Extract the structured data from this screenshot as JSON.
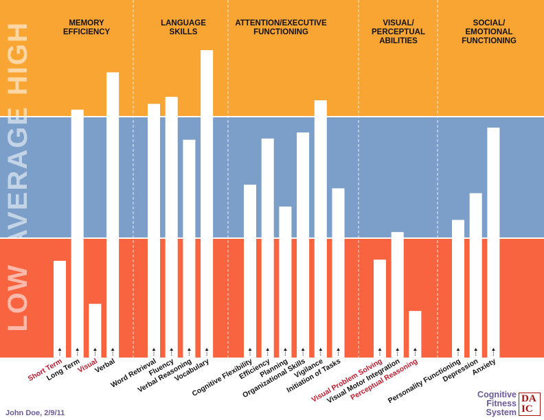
{
  "chart_data": {
    "type": "bar",
    "bands": [
      {
        "label": "HIGH",
        "color": "#f9a534",
        "range": [
          2,
          3
        ]
      },
      {
        "label": "AVERAGE",
        "color": "#7b9fc8",
        "range": [
          1,
          2
        ]
      },
      {
        "label": "LOW",
        "color": "#f86440",
        "range": [
          0,
          1
        ]
      }
    ],
    "ylim": [
      0,
      3
    ],
    "groups": [
      {
        "title": [
          "MEMORY",
          "EFFICIENCY"
        ],
        "items": [
          {
            "label": "Short Term",
            "value": 0.81,
            "highlight": true
          },
          {
            "label": "Long Term",
            "value": 2.06,
            "highlight": false
          },
          {
            "label": "Visual",
            "value": 0.45,
            "highlight": true
          },
          {
            "label": "Verbal",
            "value": 2.38,
            "highlight": false
          }
        ]
      },
      {
        "title": [
          "LANGUAGE",
          "SKILLS"
        ],
        "items": [
          {
            "label": "Word Retrieval",
            "value": 2.11,
            "highlight": false
          },
          {
            "label": "Fluency",
            "value": 2.17,
            "highlight": false
          },
          {
            "label": "Verbal Reasoning",
            "value": 1.81,
            "highlight": false
          },
          {
            "label": "Vocabulary",
            "value": 2.57,
            "highlight": false
          }
        ]
      },
      {
        "title": [
          "ATTENTION/EXECUTIVE",
          "FUNCTIONING"
        ],
        "items": [
          {
            "label": "Cognitive Flexibility",
            "value": 1.44,
            "highlight": false
          },
          {
            "label": "Efficiency",
            "value": 1.82,
            "highlight": false
          },
          {
            "label": "Planning",
            "value": 1.26,
            "highlight": false
          },
          {
            "label": "Organizational Skills",
            "value": 1.87,
            "highlight": false
          },
          {
            "label": "Vigilance",
            "value": 2.14,
            "highlight": false
          },
          {
            "label": "Initiation of Tasks",
            "value": 1.41,
            "highlight": false
          }
        ]
      },
      {
        "title": [
          "VISUAL/",
          "PERCEPTUAL",
          "ABILITIES"
        ],
        "items": [
          {
            "label": "Visual Problem Solving",
            "value": 0.82,
            "highlight": true
          },
          {
            "label": "Visual Motor Integration",
            "value": 1.05,
            "highlight": false
          },
          {
            "label": "Perceptual Reasoning",
            "value": 0.39,
            "highlight": true
          }
        ]
      },
      {
        "title": [
          "SOCIAL/",
          "EMOTIONAL",
          "FUNCTIONING"
        ],
        "items": [
          {
            "label": "Personality Functioning",
            "value": 1.15,
            "highlight": false
          },
          {
            "label": "Depression",
            "value": 1.37,
            "highlight": false
          },
          {
            "label": "Anxiety",
            "value": 1.91,
            "highlight": false
          }
        ]
      }
    ],
    "grid": false,
    "legend": "none"
  },
  "footer": {
    "patient": "John Doe, 2/9/11",
    "brand_lines": [
      "Cognitive",
      "Fitness",
      "System"
    ],
    "logo_top": "DA",
    "logo_bottom": "IC"
  },
  "colors": {
    "bar": "#ffffff",
    "highlight_label": "#c0182b",
    "title": "#111111",
    "brand": "#6a5a9a"
  }
}
